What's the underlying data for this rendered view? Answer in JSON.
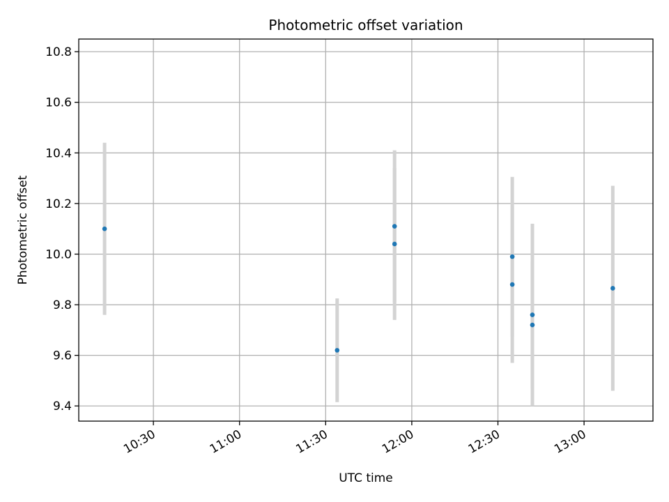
{
  "chart_data": {
    "type": "scatter",
    "title": "Photometric offset variation",
    "xlabel": "UTC time",
    "ylabel": "Photometric offset",
    "x_ticks": [
      "10:30",
      "11:00",
      "11:30",
      "12:00",
      "12:30",
      "13:00"
    ],
    "y_ticks": [
      "9.4",
      "9.6",
      "9.8",
      "10.0",
      "10.2",
      "10.4",
      "10.6",
      "10.8"
    ],
    "xlim": [
      "10:04",
      "13:24"
    ],
    "ylim": [
      9.34,
      10.85
    ],
    "grid": true,
    "errorbar_color": "#d3d3d3",
    "marker_color": "#1f77b4",
    "points": [
      {
        "time": "10:13",
        "y": 10.1,
        "yerr": 0.34
      },
      {
        "time": "11:34",
        "y": 9.62,
        "yerr": 0.205
      },
      {
        "time": "11:54",
        "y": 10.04,
        "yerr": 0.3
      },
      {
        "time": "11:54",
        "y": 10.11,
        "yerr": 0.3
      },
      {
        "time": "12:35",
        "y": 9.88,
        "yerr": 0.31
      },
      {
        "time": "12:35",
        "y": 9.99,
        "yerr": 0.315
      },
      {
        "time": "12:42",
        "y": 9.72,
        "yerr": 0.25
      },
      {
        "time": "12:42",
        "y": 9.76,
        "yerr": 0.36
      },
      {
        "time": "13:10",
        "y": 9.865,
        "yerr": 0.405
      }
    ]
  }
}
